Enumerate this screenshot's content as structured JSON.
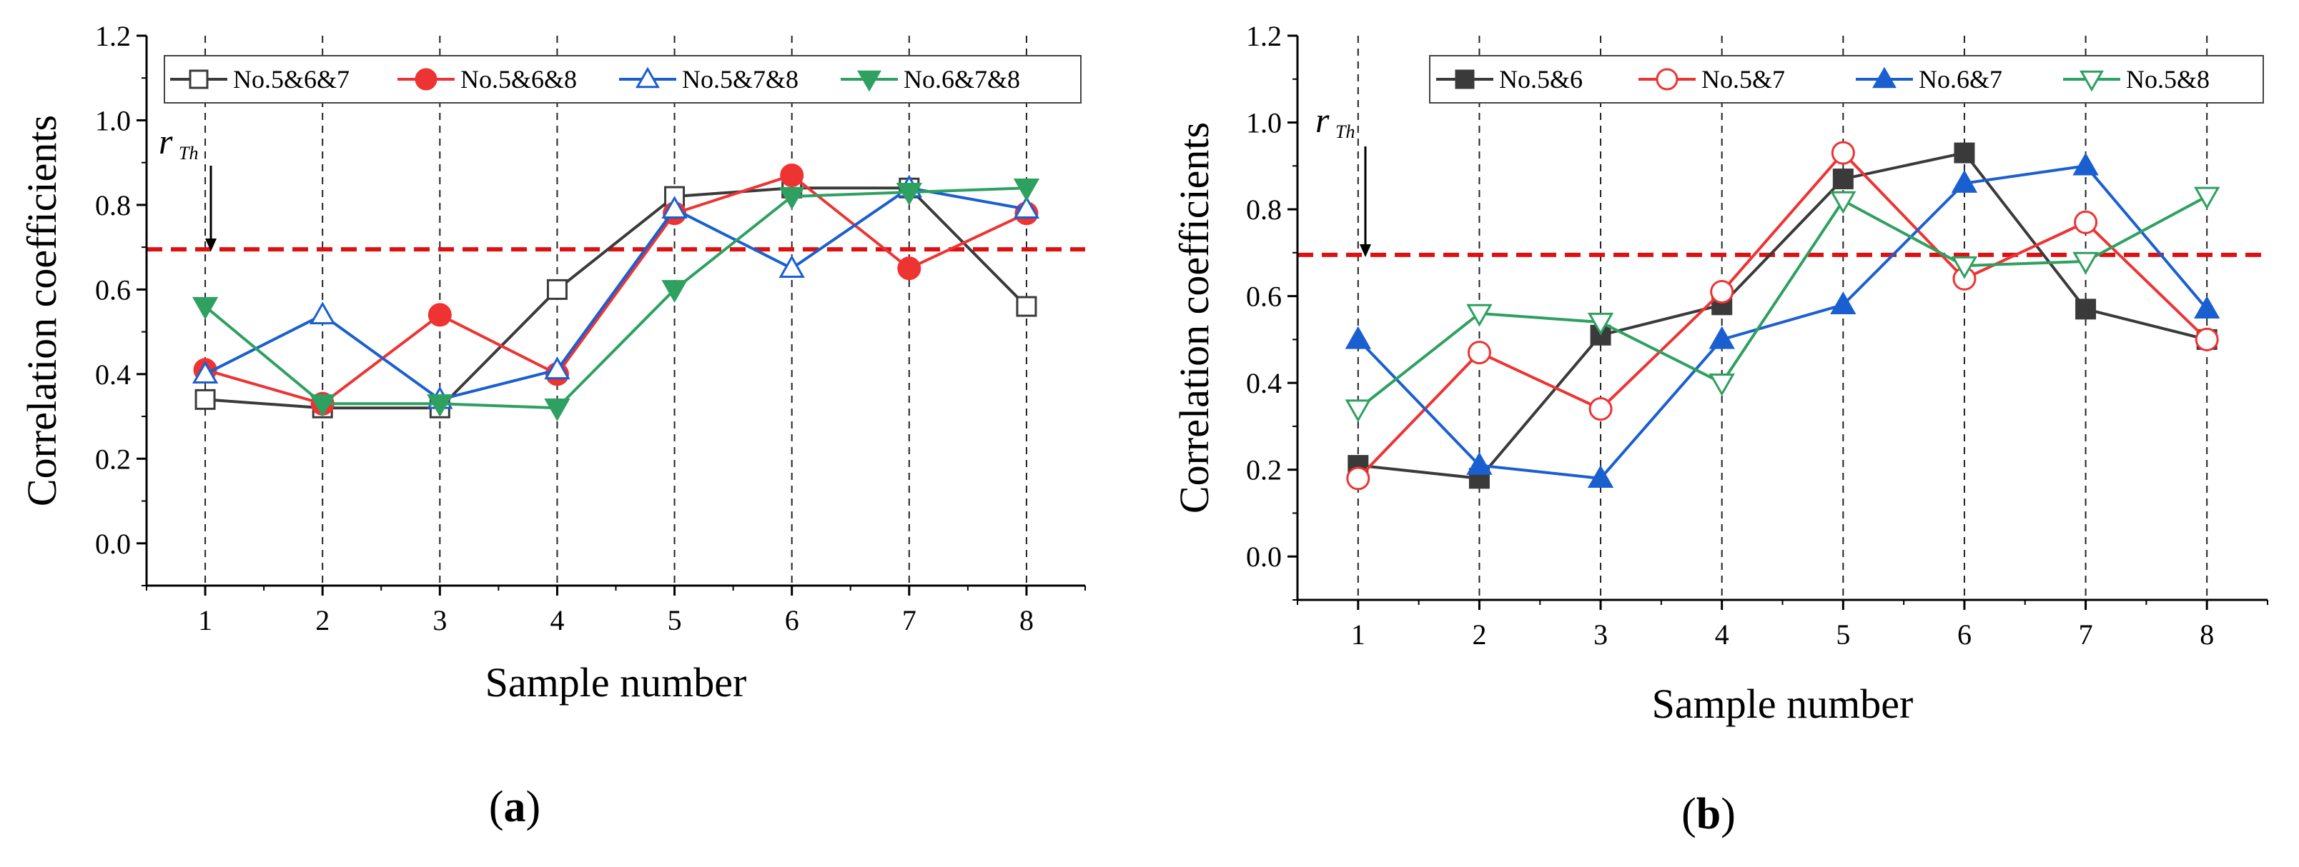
{
  "chart_data": [
    {
      "type": "line",
      "panel_label": "a",
      "xlabel": "Sample number",
      "ylabel": "Correlation coefficients",
      "x": [
        1,
        2,
        3,
        4,
        5,
        6,
        7,
        8
      ],
      "xlim": [
        0.5,
        8.5
      ],
      "ylim": [
        -0.1,
        1.2
      ],
      "yticks": [
        "0.0",
        "0.2",
        "0.4",
        "0.6",
        "0.8",
        "1.0",
        "1.2"
      ],
      "xticks": [
        "1",
        "2",
        "3",
        "4",
        "5",
        "6",
        "7",
        "8"
      ],
      "grid": "vertical dashed lines at each sample",
      "legend_position": "top",
      "threshold": {
        "label": "r",
        "subscript": "Th",
        "value": 0.695,
        "color": "#dd1111"
      },
      "series": [
        {
          "name": "No.5&6&7",
          "color": "#3a3a3a",
          "marker": "square-open",
          "values": [
            0.34,
            0.32,
            0.32,
            0.6,
            0.82,
            0.84,
            0.84,
            0.56
          ]
        },
        {
          "name": "No.5&6&8",
          "color": "#ee3333",
          "marker": "circle-filled",
          "values": [
            0.41,
            0.33,
            0.54,
            0.4,
            0.78,
            0.87,
            0.65,
            0.78
          ]
        },
        {
          "name": "No.5&7&8",
          "color": "#1a5fd0",
          "marker": "triangle-up-open",
          "values": [
            0.4,
            0.54,
            0.34,
            0.41,
            0.79,
            0.65,
            0.84,
            0.79
          ]
        },
        {
          "name": "No.6&7&8",
          "color": "#2ea060",
          "marker": "triangle-down-filled",
          "values": [
            0.56,
            0.33,
            0.33,
            0.32,
            0.6,
            0.82,
            0.83,
            0.84
          ]
        }
      ]
    },
    {
      "type": "line",
      "panel_label": "b",
      "xlabel": "Sample number",
      "ylabel": "Correlation coefficients",
      "x": [
        1,
        2,
        3,
        4,
        5,
        6,
        7,
        8
      ],
      "xlim": [
        0.5,
        8.5
      ],
      "ylim": [
        -0.1,
        1.2
      ],
      "yticks": [
        "0.0",
        "0.2",
        "0.4",
        "0.6",
        "0.8",
        "1.0",
        "1.2"
      ],
      "xticks": [
        "1",
        "2",
        "3",
        "4",
        "5",
        "6",
        "7",
        "8"
      ],
      "grid": "vertical dashed lines at each sample",
      "legend_position": "top",
      "threshold": {
        "label": "r",
        "subscript": "Th",
        "value": 0.695,
        "color": "#dd1111"
      },
      "series": [
        {
          "name": "No.5&6",
          "color": "#3a3a3a",
          "marker": "square-filled",
          "values": [
            0.21,
            0.18,
            0.51,
            0.58,
            0.87,
            0.93,
            0.57,
            0.5
          ]
        },
        {
          "name": "No.5&7",
          "color": "#ee3333",
          "marker": "circle-open",
          "values": [
            0.18,
            0.47,
            0.34,
            0.61,
            0.93,
            0.64,
            0.77,
            0.5
          ]
        },
        {
          "name": "No.6&7",
          "color": "#1a5fd0",
          "marker": "triangle-up-filled",
          "values": [
            0.5,
            0.21,
            0.18,
            0.5,
            0.58,
            0.86,
            0.9,
            0.57
          ]
        },
        {
          "name": "No.5&8",
          "color": "#2ea060",
          "marker": "triangle-down-open",
          "values": [
            0.34,
            0.56,
            0.54,
            0.4,
            0.82,
            0.67,
            0.68,
            0.83
          ]
        }
      ]
    }
  ]
}
